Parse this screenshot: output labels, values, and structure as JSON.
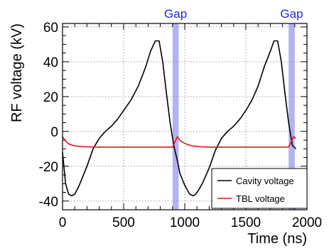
{
  "chart_data": {
    "type": "line",
    "title": "",
    "xlabel": "Time (ns)",
    "ylabel": "RF voltage (kV)",
    "xlim": [
      0,
      2000
    ],
    "ylim": [
      -45,
      62
    ],
    "x_ticks": [
      0,
      500,
      1000,
      1500,
      2000
    ],
    "y_ticks": [
      -40,
      -20,
      0,
      20,
      40,
      60
    ],
    "grid": true,
    "legend_position": "bottom-right",
    "series": [
      {
        "name": "Cavity voltage",
        "color": "#000000",
        "x": [
          0,
          25,
          50,
          75,
          100,
          130,
          160,
          200,
          250,
          300,
          350,
          400,
          450,
          500,
          560,
          620,
          680,
          720,
          760,
          790,
          820,
          850,
          880,
          910,
          940,
          960,
          1000,
          1040,
          1070,
          1090,
          1120,
          1150,
          1200,
          1250,
          1300,
          1350,
          1400,
          1450,
          1500,
          1550,
          1600,
          1650,
          1700,
          1730,
          1760,
          1790,
          1820,
          1850,
          1880,
          1910
        ],
        "y": [
          -12,
          -30,
          -36,
          -37,
          -36,
          -32,
          -27,
          -20,
          -10,
          -4,
          0,
          3,
          7,
          12,
          18,
          26,
          37,
          46,
          52,
          52,
          40,
          22,
          5,
          -8,
          -17,
          -24,
          -31,
          -36,
          -37,
          -36,
          -33,
          -29,
          -21,
          -11,
          -4,
          0,
          3,
          7,
          12,
          18,
          26,
          37,
          46,
          52,
          52,
          40,
          22,
          5,
          -8,
          -10
        ]
      },
      {
        "name": "TBL voltage",
        "color": "#e8141c",
        "x": [
          0,
          30,
          60,
          100,
          150,
          200,
          300,
          400,
          500,
          600,
          700,
          800,
          900,
          920,
          940,
          960,
          990,
          1020,
          1060,
          1100,
          1150,
          1200,
          1300,
          1400,
          1500,
          1600,
          1700,
          1800,
          1850,
          1870,
          1890,
          1910
        ],
        "y": [
          -3,
          -6,
          -7.5,
          -8.3,
          -8.7,
          -8.9,
          -9,
          -9,
          -9,
          -9,
          -9,
          -9,
          -9,
          -6,
          -3,
          -5,
          -6.5,
          -7.5,
          -8.3,
          -8.7,
          -8.9,
          -9,
          -9,
          -9,
          -9,
          -9,
          -9,
          -9,
          -9,
          -6,
          -3,
          -4
        ]
      }
    ],
    "highlight_bands": [
      {
        "label": "Gap",
        "x_range": [
          900,
          950
        ],
        "color": "#9999ee"
      },
      {
        "label": "Gap",
        "x_range": [
          1850,
          1900
        ],
        "color": "#9999ee"
      }
    ]
  }
}
